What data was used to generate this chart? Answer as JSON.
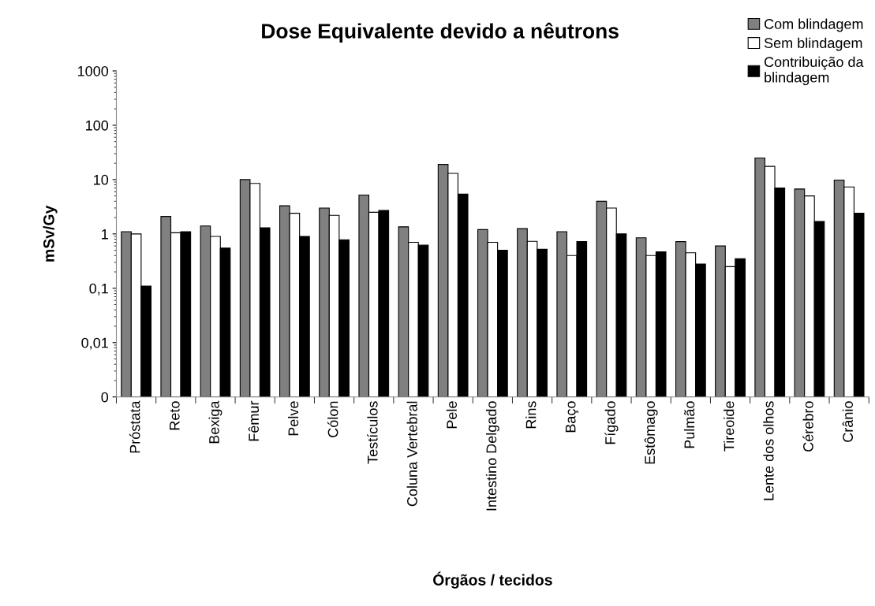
{
  "chart_data": {
    "type": "bar",
    "title": "Dose Equivalente devido a nêutrons",
    "xlabel": "Órgãos / tecidos",
    "ylabel": "mSv/Gy",
    "categories": [
      "Próstata",
      "Reto",
      "Bexiga",
      "Fêmur",
      "Pelve",
      "Cólon",
      "Testículos",
      "Coluna Vertebral",
      "Pele",
      "Intestino Delgado",
      "Rins",
      "Baço",
      "Fígado",
      "Estômago",
      "Pulmão",
      "Tireoide",
      "Lente dos olhos",
      "Cérebro",
      "Crânio"
    ],
    "series": [
      {
        "name": "Com blindagem",
        "color": "#808080",
        "values": [
          1.1,
          2.1,
          1.4,
          10,
          3.3,
          3.0,
          5.2,
          1.35,
          19,
          1.2,
          1.25,
          1.1,
          4.0,
          0.85,
          0.72,
          0.6,
          25,
          6.7,
          9.8
        ]
      },
      {
        "name": "Sem blindagem",
        "color": "#ffffff",
        "values": [
          1.0,
          1.05,
          0.9,
          8.5,
          2.4,
          2.2,
          2.5,
          0.7,
          13,
          0.7,
          0.73,
          0.4,
          3.0,
          0.4,
          0.45,
          0.25,
          17.5,
          5.0,
          7.3
        ]
      },
      {
        "name": "Contribuição da blindagem",
        "color": "#000000",
        "values": [
          0.11,
          1.1,
          0.55,
          1.3,
          0.9,
          0.78,
          2.7,
          0.62,
          5.4,
          0.5,
          0.52,
          0.72,
          1.0,
          0.47,
          0.28,
          0.35,
          7,
          1.7,
          2.4
        ]
      }
    ],
    "log": true,
    "ylim": [
      0.001,
      1000
    ],
    "yticks": [
      {
        "value": 0.001,
        "label": "0"
      },
      {
        "value": 0.01,
        "label": "0,01"
      },
      {
        "value": 0.1,
        "label": "0,1"
      },
      1,
      10,
      100,
      1000
    ],
    "grid": false,
    "legend": "top right"
  }
}
